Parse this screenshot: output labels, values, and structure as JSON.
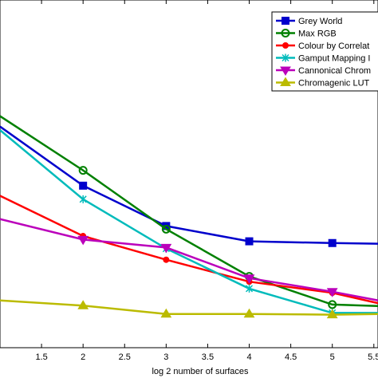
{
  "chart_data": {
    "type": "line",
    "xlabel": "log 2 number of surfaces",
    "ylabel": "",
    "title": "",
    "xlim": [
      1.0,
      5.55
    ],
    "ylim": [
      0,
      1.0
    ],
    "x_ticks": [
      "1.5",
      "2",
      "2.5",
      "3",
      "3.5",
      "4",
      "4.5",
      "5",
      "5.5"
    ],
    "grid": false,
    "legend_position": "top-right",
    "series": [
      {
        "name": "Grey World",
        "color": "#0000cc",
        "marker": "square",
        "x": [
          1,
          2,
          3,
          4,
          5,
          5.55
        ],
        "y": [
          0.636,
          0.466,
          0.35,
          0.306,
          0.301,
          0.299
        ]
      },
      {
        "name": "Max RGB",
        "color": "#008000",
        "marker": "circle",
        "x": [
          1,
          2,
          3,
          4,
          5,
          5.55
        ],
        "y": [
          0.666,
          0.51,
          0.341,
          0.205,
          0.124,
          0.12
        ]
      },
      {
        "name": "Colour by Correlat",
        "color": "#ff0000",
        "marker": "dot",
        "x": [
          1,
          2,
          3,
          4,
          5,
          5.55
        ],
        "y": [
          0.437,
          0.321,
          0.253,
          0.19,
          0.158,
          0.128
        ]
      },
      {
        "name": "Gamput Mapping I",
        "color": "#00bbbb",
        "marker": "x",
        "x": [
          1,
          2,
          3,
          4,
          5,
          5.55
        ],
        "y": [
          0.626,
          0.427,
          0.285,
          0.17,
          0.1,
          0.1
        ]
      },
      {
        "name": "Cannonical Chrom",
        "color": "#bb00bb",
        "marker": "triangle-down",
        "x": [
          1,
          2,
          3,
          4,
          5,
          5.55
        ],
        "y": [
          0.37,
          0.311,
          0.288,
          0.2,
          0.161,
          0.136
        ]
      },
      {
        "name": "Chromagenic LUT",
        "color": "#bbbb00",
        "marker": "triangle-up",
        "x": [
          1,
          2,
          3,
          4,
          5,
          5.55
        ],
        "y": [
          0.136,
          0.121,
          0.097,
          0.097,
          0.095,
          0.097
        ]
      }
    ]
  }
}
